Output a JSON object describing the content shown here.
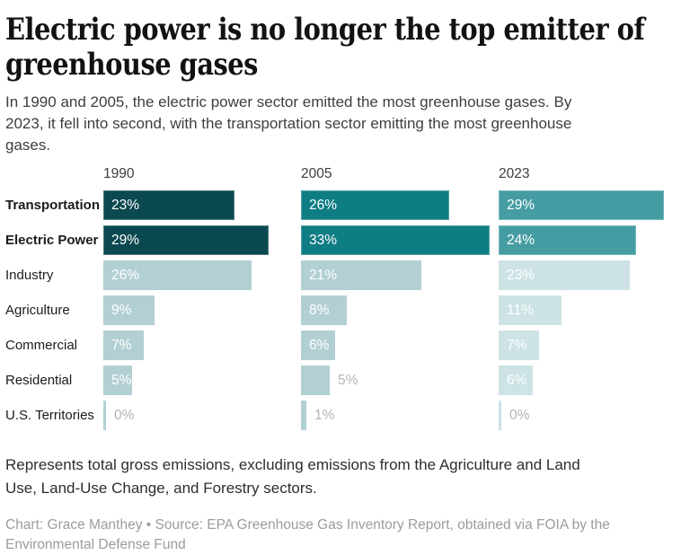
{
  "header": {
    "title": "Electric power is no longer the top emitter of greenhouse gases",
    "title_lines": [
      "Electric power is no longer the top emitter of",
      "greenhouse gases"
    ],
    "subtitle_lines": [
      "In 1990 and 2005, the electric power sector emitted the most greenhouse gases. By",
      "2023, it fell into second, with the transportation sector emitting the most greenhouse",
      "gases."
    ]
  },
  "chart_data": {
    "type": "bar",
    "layout": "small-multiple-horizontal-bars",
    "unit": "%",
    "xlim": [
      0,
      33
    ],
    "grid": false,
    "categories": [
      "Transportation",
      "Electric Power",
      "Industry",
      "Agriculture",
      "Commercial",
      "Residential",
      "U.S. Territories"
    ],
    "highlighted_categories": [
      "Transportation",
      "Electric Power"
    ],
    "series": [
      {
        "name": "1990",
        "values": [
          23,
          29,
          26,
          9,
          7,
          5,
          0
        ],
        "label_outside": [
          false,
          false,
          false,
          false,
          false,
          false,
          true
        ],
        "color_highlight": "#0b4950",
        "color_muted": "#b2d0d4"
      },
      {
        "name": "2005",
        "values": [
          26,
          33,
          21,
          8,
          6,
          5,
          1
        ],
        "label_outside": [
          false,
          false,
          false,
          false,
          false,
          true,
          true
        ],
        "color_highlight": "#0f7d84",
        "color_muted": "#b2d0d4"
      },
      {
        "name": "2023",
        "values": [
          29,
          24,
          23,
          11,
          7,
          6,
          0
        ],
        "label_outside": [
          false,
          false,
          false,
          false,
          false,
          false,
          true
        ],
        "color_highlight": "#459da3",
        "color_muted": "#cde3e5"
      }
    ],
    "value_label_color_inside": "#ffffff",
    "value_label_color_outside": "#b4b4b4"
  },
  "footer": {
    "note_lines": [
      "Represents total gross emissions, excluding emissions from the Agriculture and Land",
      "Use, Land-Use Change, and Forestry sectors."
    ],
    "credit_lines": [
      "Chart: Grace Manthey • Source: EPA Greenhouse Gas Inventory Report, obtained via FOIA by the",
      "Environmental Defense Fund"
    ]
  }
}
